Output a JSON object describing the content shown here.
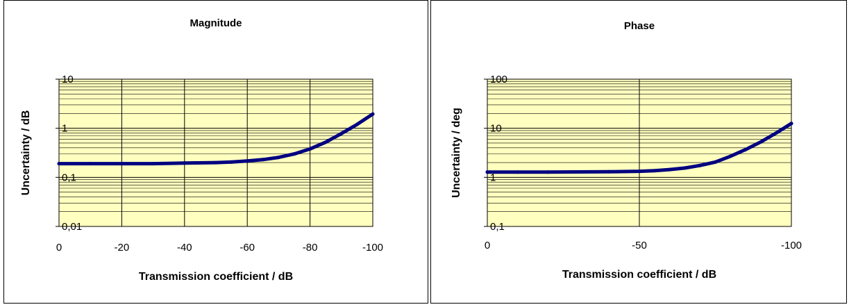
{
  "chart_data": [
    {
      "type": "line",
      "title": "Magnitude",
      "xlabel": "Transmission coefficient / dB",
      "ylabel": "Uncertainty / dB",
      "x_ticks": [
        "0",
        "-20",
        "-40",
        "-60",
        "-80",
        "-100"
      ],
      "y_ticks": [
        "10",
        "1",
        "0,1",
        "0,01"
      ],
      "xlim": [
        0,
        -100
      ],
      "ylim": [
        0.01,
        10
      ],
      "y_scale": "log",
      "grid": true,
      "legend": "none",
      "line_color": "#000080",
      "plot_background": "#ffffc0",
      "series": [
        {
          "x": [
            0,
            -10,
            -20,
            -30,
            -40,
            -50,
            -55,
            -60,
            -65,
            -70,
            -75,
            -80,
            -85,
            -90,
            -95,
            -100
          ],
          "y": [
            0.19,
            0.19,
            0.19,
            0.19,
            0.195,
            0.2,
            0.205,
            0.215,
            0.23,
            0.255,
            0.3,
            0.38,
            0.52,
            0.78,
            1.2,
            1.95
          ]
        }
      ]
    },
    {
      "type": "line",
      "title": "Phase",
      "xlabel": "Transmission coefficient / dB",
      "ylabel": "Uncertainty / deg",
      "x_ticks": [
        "0",
        "-50",
        "-100"
      ],
      "y_ticks": [
        "100",
        "10",
        "1",
        "0,1"
      ],
      "xlim": [
        0,
        -100
      ],
      "ylim": [
        0.1,
        100
      ],
      "y_scale": "log",
      "grid": true,
      "legend": "none",
      "line_color": "#000080",
      "plot_background": "#ffffc0",
      "series": [
        {
          "x": [
            0,
            -10,
            -20,
            -30,
            -40,
            -50,
            -55,
            -60,
            -65,
            -70,
            -75,
            -80,
            -85,
            -90,
            -95,
            -100
          ],
          "y": [
            1.28,
            1.28,
            1.28,
            1.29,
            1.3,
            1.33,
            1.37,
            1.44,
            1.55,
            1.75,
            2.05,
            2.7,
            3.7,
            5.3,
            8.0,
            12.5
          ]
        }
      ]
    }
  ]
}
